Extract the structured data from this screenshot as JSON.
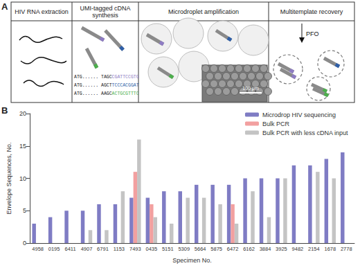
{
  "panels": {
    "labels": [
      "A",
      "B"
    ]
  },
  "panel_a": {
    "steps": [
      {
        "title": "HIV RNA extraction"
      },
      {
        "title": "UMI-tagged cDNA synthesis",
        "sequences": [
          {
            "prefix": "ATG......",
            "stem": "TAGC",
            "umi": "CGATTCCGTG",
            "color": "#8e7cc3"
          },
          {
            "prefix": "ATG......",
            "stem": "AGCT",
            "umi": "TCCCACGGAT",
            "color": "#2f5fa8"
          },
          {
            "prefix": "ATG......",
            "stem": "AAGC",
            "umi": "ACTGCGTTTC",
            "color": "#4cae4c"
          }
        ]
      },
      {
        "title": "Microdroplet amplification",
        "scale_bar": "100 μm"
      },
      {
        "title": "Multitemplate recovery",
        "reagent": "PFO"
      }
    ]
  },
  "chart_data": {
    "type": "bar",
    "categories": [
      "4958",
      "0195",
      "6411",
      "4907",
      "6791",
      "1153",
      "7493",
      "0435",
      "5151",
      "5309",
      "5664",
      "5875",
      "6472",
      "6162",
      "3884",
      "3925",
      "9482",
      "2154",
      "1678",
      "2778"
    ],
    "series": [
      {
        "name": "Microdrop HIV sequencing",
        "color": "#7f7cc4",
        "values": [
          3,
          4,
          5,
          5,
          6,
          6,
          7,
          7,
          8,
          8,
          9,
          9,
          9,
          10,
          10,
          10,
          12,
          12,
          13,
          14
        ]
      },
      {
        "name": "Bulk PCR",
        "color": "#f2a0a0",
        "values": [
          0,
          0,
          0,
          0,
          0,
          0,
          11,
          6,
          0,
          0,
          0,
          0,
          6,
          0,
          0,
          0,
          0,
          0,
          0,
          0
        ]
      },
      {
        "name": "Bulk PCR with less cDNA input",
        "color": "#c4c4c4",
        "values": [
          0,
          0,
          0,
          2,
          2,
          8,
          16,
          4,
          3,
          7,
          7,
          6,
          3,
          8,
          4,
          10,
          0,
          11,
          10,
          0
        ]
      }
    ],
    "x_label": "Specimen No.",
    "y_label": "Envelope Sequences, No.",
    "ylim": [
      0,
      20
    ],
    "yticks": [
      0,
      5,
      10,
      15,
      20
    ],
    "grid": false,
    "legend": "top-right"
  }
}
